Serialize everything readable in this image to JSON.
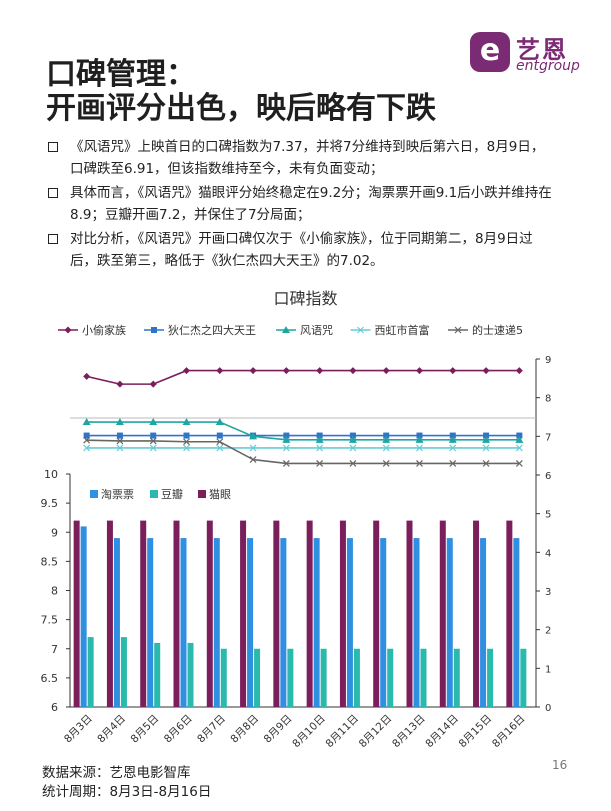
{
  "logo": {
    "mark": "e",
    "cn": "艺恩",
    "en": "entgroup"
  },
  "title_line1": "口碑管理：",
  "title_line2": "开画评分出色，映后略有下跌",
  "bullets": [
    "《风语咒》上映首日的口碑指数为7.37，并将7分维持到映后第六日，8月9日，口碑跌至6.91，但该指数维持至今，未有负面变动；",
    "具体而言，《风语咒》猫眼评分始终稳定在9.2分；淘票票开画9.1后小跌并维持在8.9；豆瓣开画7.2，并保住了7分局面；",
    "对比分析，《风语咒》开画口碑仅次于《小偷家族》，位于同期第二，8月9日过后，跌至第三，略低于《狄仁杰四大天王》的7.02。"
  ],
  "chart_title": "口碑指数",
  "source": "数据来源：艺恩电影智库",
  "period": "统计周期：8月3日-8月16日",
  "page_number": "16",
  "chart_data": {
    "type": "line",
    "title": "口碑指数",
    "x": [
      "8月3日",
      "8月4日",
      "8月5日",
      "8月6日",
      "8月7日",
      "8月8日",
      "8月9日",
      "8月10日",
      "8月11日",
      "8月12日",
      "8月13日",
      "8月14日",
      "8月15日",
      "8月16日"
    ],
    "right_axis": {
      "ylim": [
        0,
        9
      ],
      "ticks": [
        "0",
        "1",
        "2",
        "3",
        "4",
        "5",
        "6",
        "7",
        "8",
        "9"
      ]
    },
    "left_axis": {
      "ylim": [
        6,
        10
      ],
      "ticks": [
        "6",
        "6.5",
        "7",
        "7.5",
        "8",
        "8.5",
        "9",
        "9.5",
        "10"
      ]
    },
    "legend_position": "top",
    "line_series": [
      {
        "name": "小偷家族",
        "color": "#7a1f5c",
        "marker": "diamond",
        "values": [
          8.55,
          8.35,
          8.35,
          8.7,
          8.7,
          8.7,
          8.7,
          8.7,
          8.7,
          8.7,
          8.7,
          8.7,
          8.7,
          8.7
        ]
      },
      {
        "name": "狄仁杰之四大天王",
        "color": "#2e74c9",
        "marker": "square",
        "values": [
          7.02,
          7.02,
          7.02,
          7.02,
          7.02,
          7.02,
          7.02,
          7.02,
          7.02,
          7.02,
          7.02,
          7.02,
          7.02,
          7.02
        ]
      },
      {
        "name": "风语咒",
        "color": "#1fa6a0",
        "marker": "triangle",
        "values": [
          7.37,
          7.37,
          7.37,
          7.37,
          7.37,
          7.0,
          6.91,
          6.91,
          6.91,
          6.91,
          6.91,
          6.91,
          6.91,
          6.91
        ]
      },
      {
        "name": "西虹市首富",
        "color": "#66ccd8",
        "marker": "x",
        "values": [
          6.7,
          6.7,
          6.7,
          6.7,
          6.7,
          6.7,
          6.7,
          6.7,
          6.7,
          6.7,
          6.7,
          6.7,
          6.7,
          6.7
        ]
      },
      {
        "name": "的士速递5",
        "color": "#666666",
        "marker": "x",
        "values": [
          6.9,
          6.88,
          6.88,
          6.86,
          6.86,
          6.4,
          6.3,
          6.3,
          6.3,
          6.3,
          6.3,
          6.3,
          6.3,
          6.3
        ]
      }
    ],
    "bar_series": [
      {
        "name": "淘票票",
        "color": "#2f8fe0",
        "values": [
          9.1,
          8.9,
          8.9,
          8.9,
          8.9,
          8.9,
          8.9,
          8.9,
          8.9,
          8.9,
          8.9,
          8.9,
          8.9,
          8.9
        ]
      },
      {
        "name": "豆瓣",
        "color": "#2ab9ad",
        "values": [
          7.2,
          7.2,
          7.1,
          7.1,
          7.0,
          7.0,
          7.0,
          7.0,
          7.0,
          7.0,
          7.0,
          7.0,
          7.0,
          7.0
        ]
      },
      {
        "name": "猫眼",
        "color": "#7a1f5c",
        "values": [
          9.2,
          9.2,
          9.2,
          9.2,
          9.2,
          9.2,
          9.2,
          9.2,
          9.2,
          9.2,
          9.2,
          9.2,
          9.2,
          9.2
        ]
      }
    ]
  }
}
